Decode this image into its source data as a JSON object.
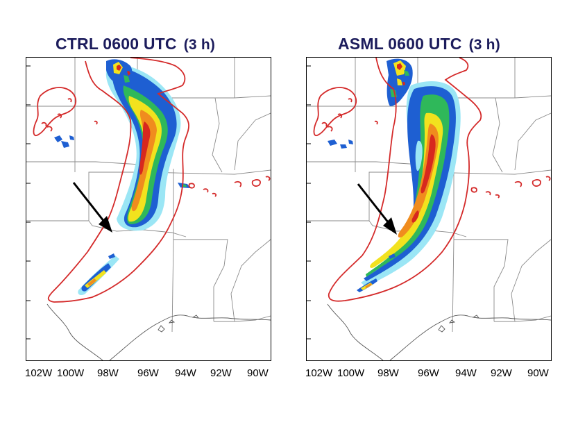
{
  "panels": [
    {
      "title": "CTRL 0600 UTC",
      "subtitle": "(3 h)"
    },
    {
      "title": "ASML 0600 UTC",
      "subtitle": "(3 h)"
    }
  ],
  "lon_labels": [
    "102W",
    "100W",
    "98W",
    "96W",
    "94W",
    "92W",
    "90W"
  ],
  "colors": {
    "title": "#1c1c5c",
    "contour": "#d42a2a",
    "state_lines": "#888888",
    "arrow": "#000000",
    "precip_light": "#9be6f5",
    "precip_mid": "#1e5fd2",
    "precip_moderate": "#2fb85a",
    "precip_heavy": "#f2e21e",
    "precip_intense": "#f08c1e",
    "precip_extreme": "#d7281e"
  }
}
